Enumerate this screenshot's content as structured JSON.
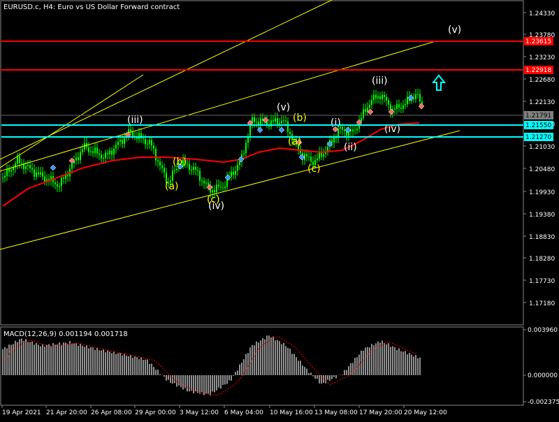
{
  "chart": {
    "title": "EURUSD.c, H4:  Euro vs US Dollar Forward contract",
    "price_axis_labels": [
      "1.24330",
      "1.23780",
      "1.23230",
      "1.22680",
      "1.22130",
      "1.21580",
      "1.21030",
      "1.20480",
      "1.19930",
      "1.19380",
      "1.18830",
      "1.18280",
      "1.17730",
      "1.17180"
    ],
    "price_markers": [
      {
        "value": "1.23615",
        "color": "#ff0000"
      },
      {
        "value": "1.22918",
        "color": "#ff0000"
      },
      {
        "value": "1.21791",
        "color": "#808080"
      },
      {
        "value": "1.21550",
        "color": "#00ffff"
      },
      {
        "value": "1.21270",
        "color": "#00ffff"
      }
    ],
    "time_labels": [
      "19 Apr 2021",
      "21 Apr 20:00",
      "26 Apr 08:00",
      "29 Apr 00:00",
      "3 May 12:00",
      "6 May 04:00",
      "10 May 16:00",
      "13 May 08:00",
      "17 May 20:00",
      "20 May 12:00"
    ],
    "wave_labels": [
      {
        "text": "(iii)",
        "color": "#ffffff"
      },
      {
        "text": "(a)",
        "color": "#ffff00"
      },
      {
        "text": "(b)",
        "color": "#ffff00"
      },
      {
        "text": "(c)",
        "color": "#ffff00"
      },
      {
        "text": "(iv)",
        "color": "#ffffff"
      },
      {
        "text": "(v)",
        "color": "#ffffff"
      },
      {
        "text": "(b)",
        "color": "#ffff00"
      },
      {
        "text": "(a)",
        "color": "#ffff00"
      },
      {
        "text": "(c)",
        "color": "#ffff00"
      },
      {
        "text": "(i)",
        "color": "#ffffff"
      },
      {
        "text": "(ii)",
        "color": "#ffffff"
      },
      {
        "text": "(iii)",
        "color": "#ffffff"
      },
      {
        "text": "(iv)",
        "color": "#ffffff"
      },
      {
        "text": "(v)",
        "color": "#ffffff"
      }
    ],
    "arrow": {
      "direction": "up",
      "color": "#00ffff",
      "icon": "up-arrow-icon"
    },
    "colors": {
      "background": "#000000",
      "bull_candle": "#00ff00",
      "moving_average": "#ff0000",
      "channel_lines": "#ffff00",
      "horizontal_red": "#ff0000",
      "horizontal_cyan": "#00ffff"
    }
  },
  "macd": {
    "title": "MACD(12,26,9) 0.001194 0.001718",
    "axis_labels": [
      "0.003960",
      "0.000000",
      "-0.002375"
    ],
    "histogram_color": "#c0c0c0",
    "signal_color": "#ff0000"
  }
}
